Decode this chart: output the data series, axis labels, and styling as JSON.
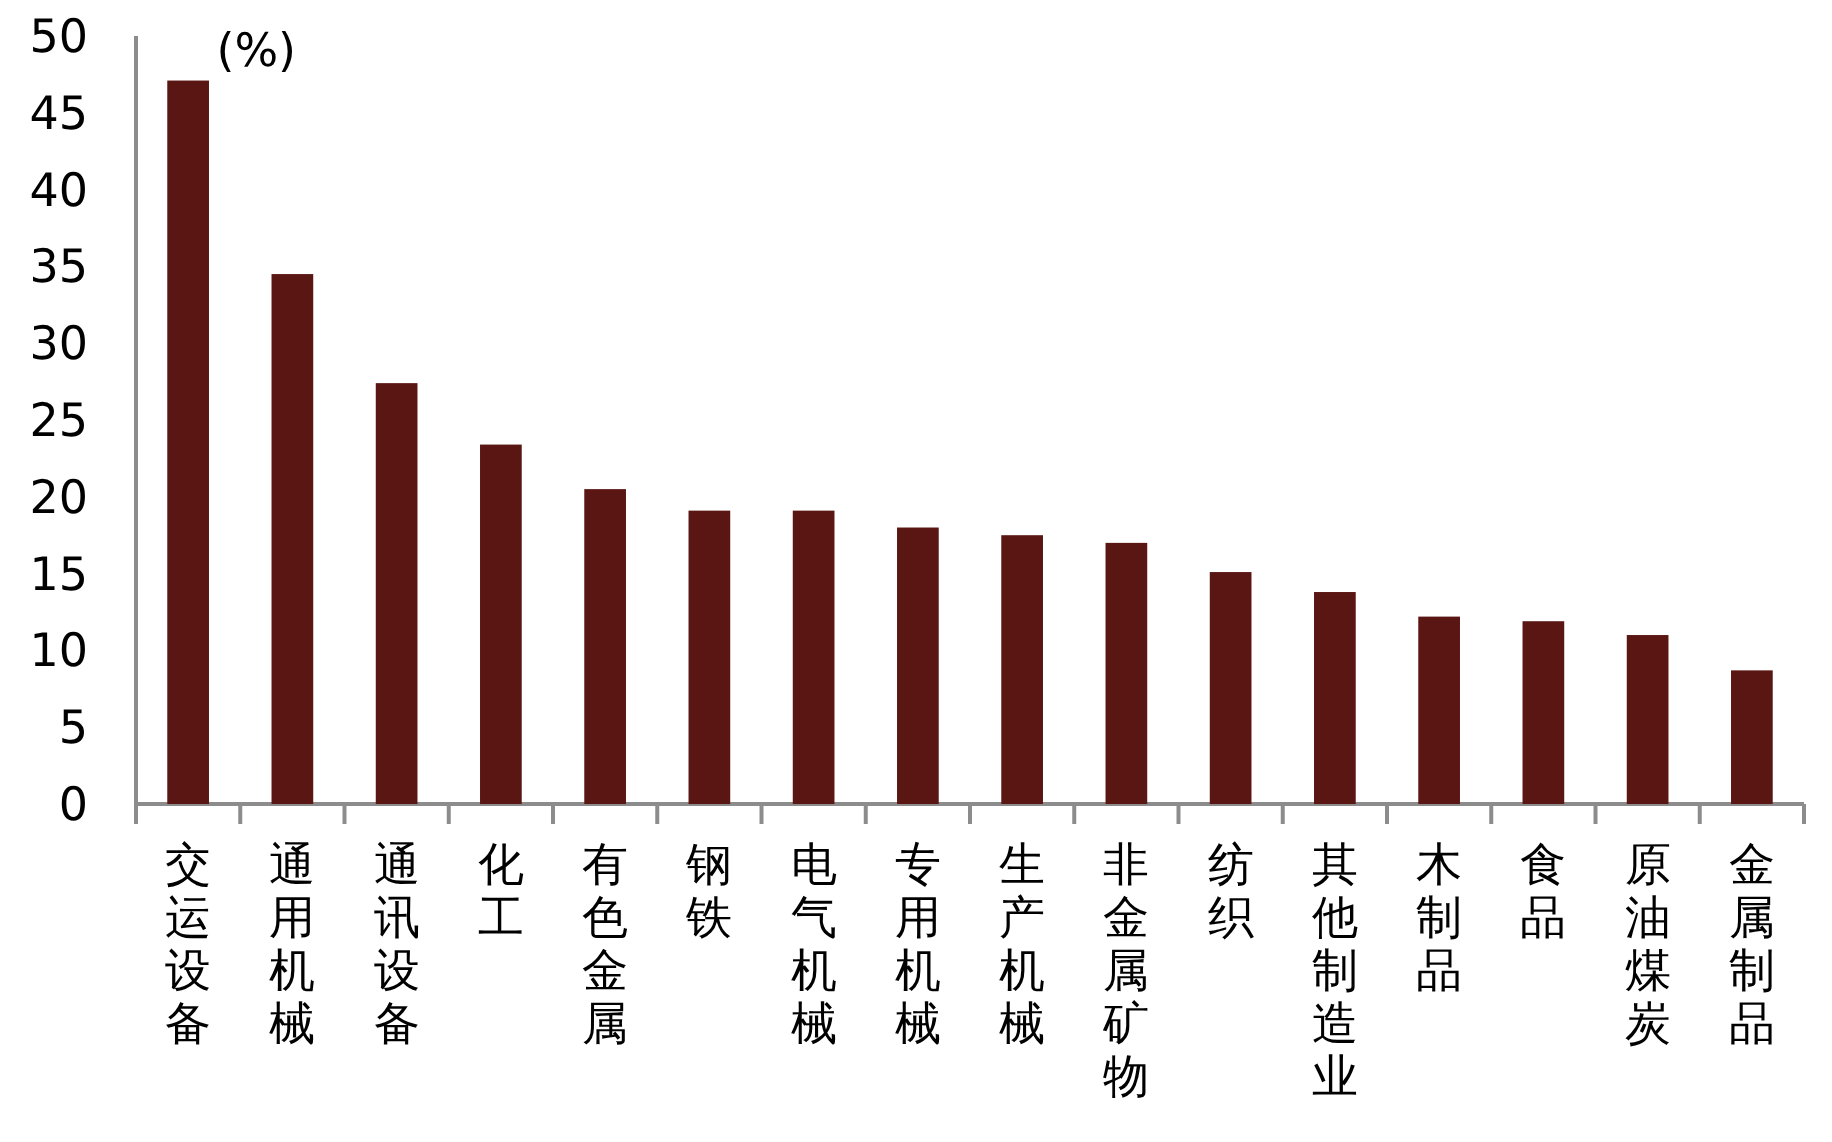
{
  "chart_data": {
    "type": "bar",
    "ylabel": "(%)",
    "categories": [
      "交运设备",
      "通用机械",
      "通讯设备",
      "化工",
      "有色金属",
      "钢铁",
      "电气机械",
      "专用机械",
      "生产机械",
      "非金属矿物",
      "纺织",
      "其他制造业",
      "木制品",
      "食品",
      "原油煤炭",
      "金属制品"
    ],
    "values": [
      47.1,
      34.5,
      27.4,
      23.4,
      20.5,
      19.1,
      19.1,
      18.0,
      17.5,
      17.0,
      15.1,
      13.8,
      12.2,
      11.9,
      11.0,
      8.7
    ],
    "color": "#5a1612",
    "ylim": [
      0,
      50
    ],
    "yticks": [
      0,
      5,
      10,
      15,
      20,
      25,
      30,
      35,
      40,
      45,
      50
    ],
    "grid": false
  }
}
